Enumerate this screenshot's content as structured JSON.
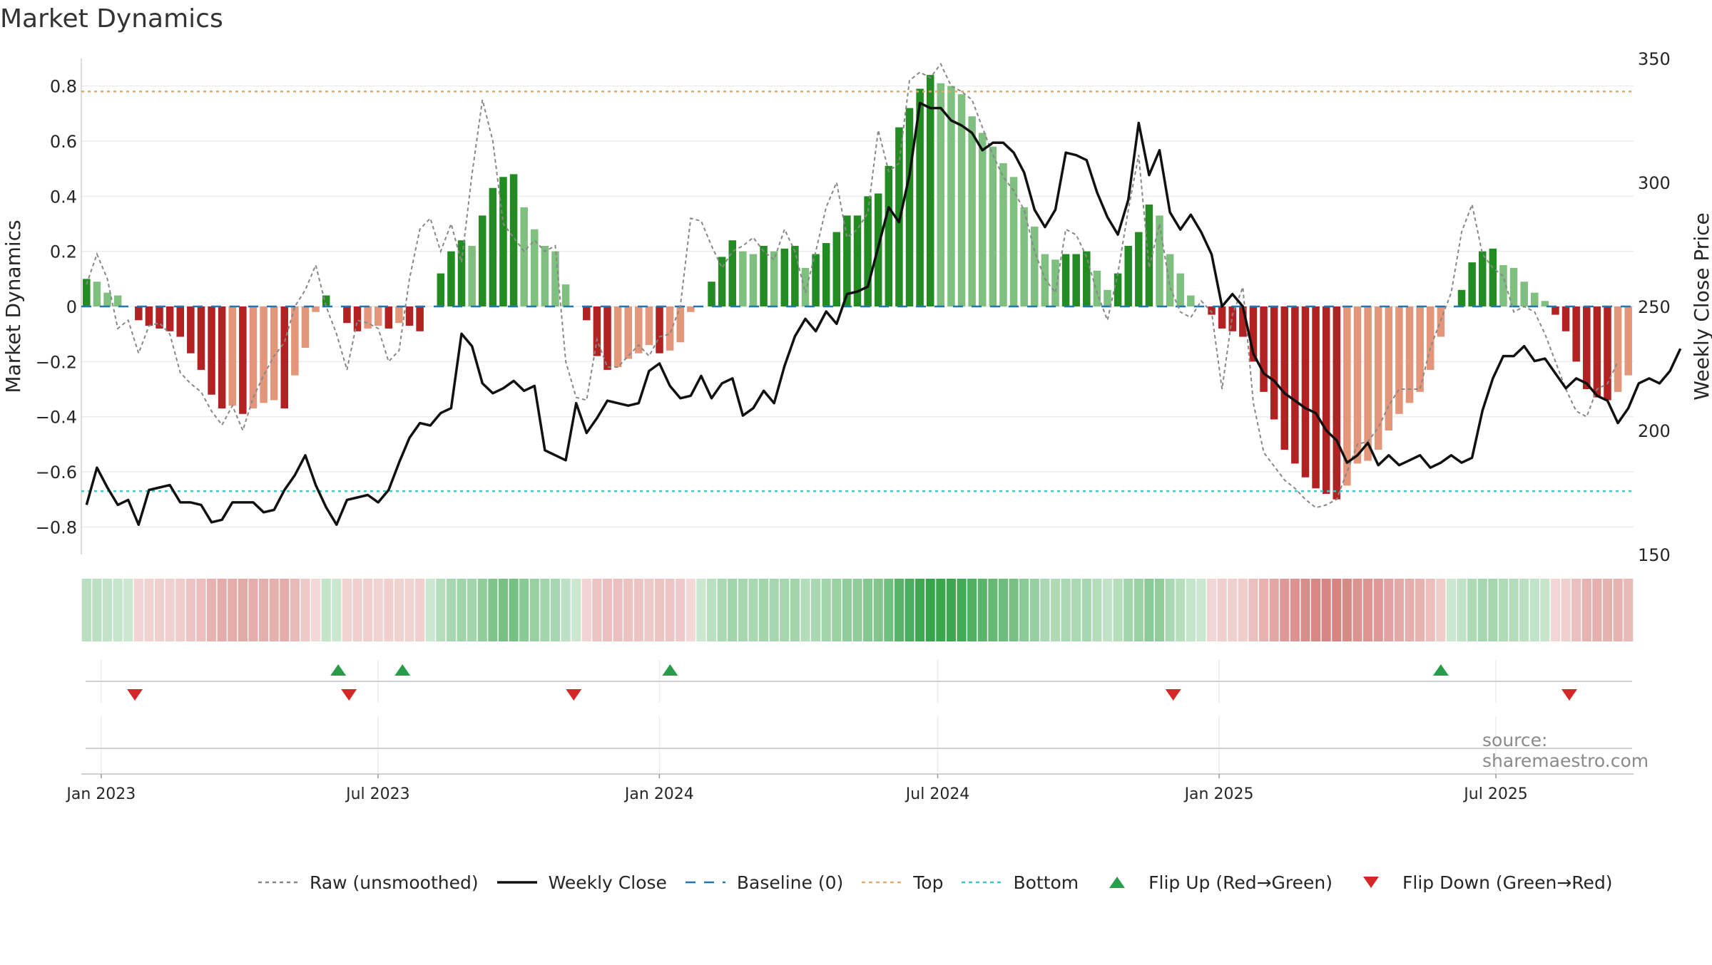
{
  "page_title": "Market Dynamics",
  "source": "source: sharemaestro.com",
  "colors": {
    "strong_green": "#228b22",
    "light_green": "#7fbf7f",
    "strong_red": "#b22222",
    "light_red": "#e4967a",
    "raw": "#888888",
    "close": "#111111",
    "baseline": "#1f77b4",
    "top": "#e0a96d",
    "bottom": "#3ec7c7",
    "flip_up": "#2a9d4a",
    "flip_down": "#d62728"
  },
  "legend": [
    {
      "key": "raw",
      "label": "Raw (unsmoothed)",
      "icon": "dotted-line"
    },
    {
      "key": "close",
      "label": "Weekly Close",
      "icon": "solid-line"
    },
    {
      "key": "baseline",
      "label": "Baseline (0)",
      "icon": "dashed-line"
    },
    {
      "key": "top",
      "label": "Top",
      "icon": "dotted-line"
    },
    {
      "key": "bottom",
      "label": "Bottom",
      "icon": "dotted-line"
    },
    {
      "key": "flip_up",
      "label": "Flip Up (Red→Green)",
      "icon": "triangle-up"
    },
    {
      "key": "flip_down",
      "label": "Flip Down (Green→Red)",
      "icon": "triangle-down"
    }
  ],
  "chart_data": {
    "type": "bar",
    "title": "Market Dynamics",
    "ylabel": "Market Dynamics",
    "y2label": "Weekly Close Price",
    "ylim": [
      -0.9,
      0.9
    ],
    "y2lim": [
      150,
      350
    ],
    "yticks": [
      "−0.8",
      "−0.6",
      "−0.4",
      "−0.2",
      "0",
      "0.2",
      "0.4",
      "0.6",
      "0.8"
    ],
    "y2ticks": [
      "150",
      "200",
      "250",
      "300",
      "350"
    ],
    "x_start": "2022-12-19",
    "x_end": "2025-09-29",
    "xticks": [
      {
        "label": "Jan 2023",
        "date": "2023-01-01"
      },
      {
        "label": "Jul 2023",
        "date": "2023-07-01"
      },
      {
        "label": "Jan 2024",
        "date": "2024-01-01"
      },
      {
        "label": "Jul 2024",
        "date": "2024-07-01"
      },
      {
        "label": "Jan 2025",
        "date": "2025-01-01"
      },
      {
        "label": "Jul 2025",
        "date": "2025-07-01"
      }
    ],
    "grid": true,
    "legend_position": "bottom",
    "top_level": 0.78,
    "bottom_level": -0.67,
    "baseline": 0,
    "dynamics": [
      0.1,
      0.09,
      0.05,
      0.04,
      0.0,
      -0.05,
      -0.07,
      -0.08,
      -0.09,
      -0.11,
      -0.17,
      -0.23,
      -0.32,
      -0.37,
      -0.36,
      -0.39,
      -0.37,
      -0.35,
      -0.34,
      -0.37,
      -0.25,
      -0.15,
      -0.02,
      0.04,
      0.0,
      -0.06,
      -0.09,
      -0.08,
      -0.07,
      -0.08,
      -0.06,
      -0.07,
      -0.09,
      0.0,
      0.12,
      0.2,
      0.24,
      0.22,
      0.33,
      0.43,
      0.47,
      0.48,
      0.36,
      0.28,
      0.22,
      0.2,
      0.08,
      0.0,
      -0.05,
      -0.18,
      -0.23,
      -0.22,
      -0.19,
      -0.17,
      -0.14,
      -0.17,
      -0.16,
      -0.13,
      -0.02,
      0.0,
      0.09,
      0.18,
      0.24,
      0.2,
      0.19,
      0.22,
      0.2,
      0.21,
      0.22,
      0.14,
      0.19,
      0.23,
      0.27,
      0.33,
      0.33,
      0.4,
      0.41,
      0.51,
      0.65,
      0.72,
      0.79,
      0.84,
      0.81,
      0.8,
      0.77,
      0.69,
      0.63,
      0.58,
      0.52,
      0.47,
      0.36,
      0.29,
      0.19,
      0.17,
      0.19,
      0.19,
      0.2,
      0.13,
      0.06,
      0.12,
      0.22,
      0.27,
      0.37,
      0.33,
      0.19,
      0.12,
      0.04,
      0.0,
      -0.03,
      -0.08,
      -0.09,
      -0.11,
      -0.2,
      -0.31,
      -0.41,
      -0.52,
      -0.57,
      -0.62,
      -0.66,
      -0.68,
      -0.7,
      -0.65,
      -0.57,
      -0.56,
      -0.52,
      -0.45,
      -0.39,
      -0.35,
      -0.31,
      -0.23,
      -0.11,
      0.0,
      0.06,
      0.16,
      0.2,
      0.21,
      0.15,
      0.14,
      0.09,
      0.05,
      0.02,
      -0.03,
      -0.09,
      -0.2,
      -0.3,
      -0.33,
      -0.34,
      -0.31,
      -0.25
    ],
    "raw": [
      0.08,
      0.19,
      0.1,
      -0.08,
      -0.05,
      -0.17,
      -0.07,
      -0.06,
      -0.1,
      -0.24,
      -0.28,
      -0.31,
      -0.38,
      -0.43,
      -0.36,
      -0.45,
      -0.33,
      -0.25,
      -0.18,
      -0.13,
      0.0,
      0.06,
      0.15,
      0.0,
      -0.1,
      -0.23,
      -0.05,
      -0.06,
      -0.08,
      -0.2,
      -0.16,
      0.1,
      0.28,
      0.32,
      0.2,
      0.3,
      0.16,
      0.48,
      0.75,
      0.6,
      0.3,
      0.25,
      0.2,
      0.24,
      0.2,
      0.22,
      -0.2,
      -0.33,
      -0.34,
      -0.12,
      -0.22,
      -0.22,
      -0.18,
      -0.14,
      -0.18,
      -0.11,
      -0.1,
      0.0,
      0.32,
      0.31,
      0.22,
      0.14,
      0.2,
      0.22,
      0.25,
      0.2,
      0.17,
      0.28,
      0.2,
      0.05,
      0.2,
      0.36,
      0.45,
      0.25,
      0.28,
      0.34,
      0.64,
      0.49,
      0.52,
      0.82,
      0.85,
      0.83,
      0.88,
      0.8,
      0.78,
      0.75,
      0.65,
      0.55,
      0.47,
      0.42,
      0.35,
      0.2,
      0.1,
      0.05,
      0.28,
      0.26,
      0.18,
      0.05,
      -0.05,
      0.12,
      0.35,
      0.55,
      0.14,
      0.3,
      0.07,
      -0.02,
      -0.04,
      0.02,
      -0.02,
      -0.3,
      -0.03,
      0.07,
      -0.35,
      -0.53,
      -0.58,
      -0.63,
      -0.66,
      -0.7,
      -0.73,
      -0.72,
      -0.7,
      -0.6,
      -0.5,
      -0.49,
      -0.44,
      -0.36,
      -0.3,
      -0.3,
      -0.3,
      -0.15,
      -0.05,
      0.05,
      0.27,
      0.37,
      0.19,
      0.14,
      0.11,
      -0.02,
      0.0,
      -0.02,
      -0.1,
      -0.2,
      -0.3,
      -0.38,
      -0.4,
      -0.3,
      -0.28,
      -0.2
    ],
    "close": [
      170,
      185,
      177,
      170,
      172,
      162,
      176,
      177,
      178,
      171,
      171,
      170,
      163,
      164,
      171,
      171,
      171,
      167,
      168,
      176,
      182,
      190,
      178,
      169,
      162,
      172,
      173,
      174,
      171,
      176,
      187,
      197,
      203,
      202,
      207,
      209,
      239,
      234,
      219,
      215,
      217,
      220,
      216,
      218,
      192,
      190,
      188,
      211,
      199,
      205,
      212,
      211,
      210,
      211,
      224,
      227,
      218,
      213,
      214,
      222,
      213,
      219,
      221,
      206,
      209,
      216,
      211,
      226,
      238,
      245,
      240,
      248,
      243,
      255,
      256,
      258,
      274,
      290,
      284,
      303,
      332,
      330,
      330,
      325,
      323,
      320,
      313,
      316,
      316,
      312,
      304,
      289,
      282,
      289,
      312,
      311,
      309,
      296,
      286,
      279,
      293,
      324,
      303,
      313,
      288,
      281,
      287,
      280,
      271,
      250,
      255,
      250,
      231,
      223,
      220,
      215,
      212,
      209,
      207,
      200,
      196,
      187,
      190,
      195,
      186,
      190,
      186,
      188,
      190,
      185,
      187,
      190,
      187,
      189,
      208,
      221,
      230,
      230,
      234,
      228,
      229,
      223,
      217,
      221,
      219,
      214,
      212,
      203,
      209,
      219,
      221,
      219,
      224,
      233
    ],
    "flips": [
      {
        "date": "2023-01-23",
        "direction": "down"
      },
      {
        "date": "2023-06-05",
        "direction": "up"
      },
      {
        "date": "2023-06-12",
        "direction": "down"
      },
      {
        "date": "2023-07-17",
        "direction": "up"
      },
      {
        "date": "2023-11-06",
        "direction": "down"
      },
      {
        "date": "2024-01-08",
        "direction": "up"
      },
      {
        "date": "2024-12-02",
        "direction": "down"
      },
      {
        "date": "2025-05-26",
        "direction": "up"
      },
      {
        "date": "2025-08-18",
        "direction": "down"
      }
    ]
  }
}
